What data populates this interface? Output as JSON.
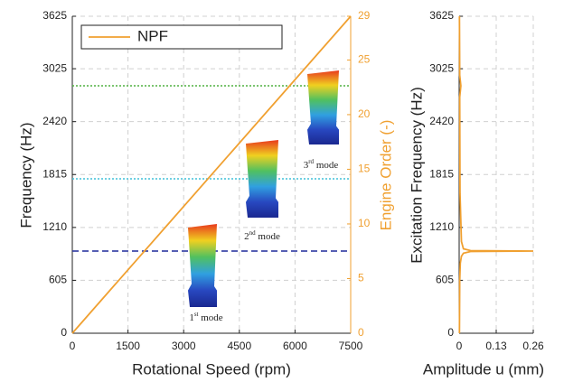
{
  "chart_data": [
    {
      "type": "line",
      "xlabel": "Rotational Speed (rpm)",
      "ylabel": "Frequency (Hz)",
      "y2label": "Engine Order (-)",
      "xlim": [
        0,
        7500
      ],
      "xticks": [
        0,
        1500,
        3000,
        4500,
        6000,
        7500
      ],
      "ylim": [
        0,
        3625
      ],
      "yticks": [
        0,
        605,
        1210,
        1815,
        2420,
        3025,
        3625
      ],
      "y2lim": [
        0,
        29
      ],
      "y2ticks": [
        0,
        5,
        10,
        15,
        20,
        25,
        29
      ],
      "grid": true,
      "legend": "top-left",
      "y2color": "#f0a030",
      "series": [
        {
          "name": "NPF",
          "color": "#f0a030",
          "axis": "y2",
          "x": [
            0,
            7500
          ],
          "values": [
            0,
            29
          ]
        }
      ],
      "modes": [
        {
          "number": "1",
          "suffix": "st",
          "text": " mode",
          "frequency": 940,
          "color": "#1f2a9a",
          "style": "dashed"
        },
        {
          "number": "2",
          "suffix": "nd",
          "text": " mode",
          "frequency": 1766,
          "color": "#40c0d8",
          "style": "dotted"
        },
        {
          "number": "3",
          "suffix": "rd",
          "text": " mode",
          "frequency": 2830,
          "color": "#50b040",
          "style": "dotted"
        }
      ]
    },
    {
      "type": "line",
      "xlabel": "Amplitude u (mm)",
      "ylabel": "Excitation Frequency (Hz)",
      "xlim": [
        0,
        0.26
      ],
      "xticks": [
        0,
        0.13,
        0.26
      ],
      "ylim": [
        0,
        3625
      ],
      "yticks": [
        0,
        605,
        1210,
        1815,
        2420,
        3025,
        3625
      ],
      "grid": true,
      "series": [
        {
          "color": "#f0a030",
          "x": [
            0.001,
            0.002,
            0.004,
            0.008,
            0.015,
            0.04,
            0.26,
            0.04,
            0.015,
            0.008,
            0.003,
            0.002,
            0.006,
            0.002,
            0.001
          ],
          "values": [
            0,
            600,
            800,
            880,
            915,
            935,
            940,
            945,
            965,
            1050,
            1600,
            2700,
            2830,
            2950,
            3625
          ]
        }
      ]
    }
  ]
}
